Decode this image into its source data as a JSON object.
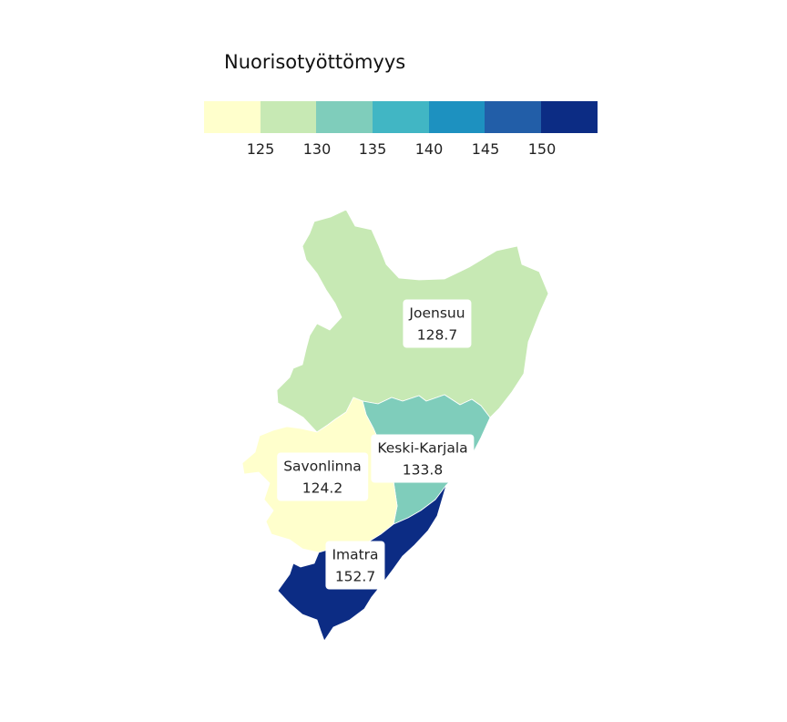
{
  "legend": {
    "title": "Nuorisotyöttömyys",
    "colors": [
      "#ffffcc",
      "#c7e9b4",
      "#7fcdbb",
      "#41b6c4",
      "#1d91c0",
      "#225ea8",
      "#0c2c84"
    ],
    "ticks": [
      "125",
      "130",
      "135",
      "140",
      "145",
      "150"
    ]
  },
  "regions": [
    {
      "name": "Joensuu",
      "value": "128.7",
      "color": "#c7e9b4"
    },
    {
      "name": "Keski-Karjala",
      "value": "133.8",
      "color": "#7fcdbb"
    },
    {
      "name": "Savonlinna",
      "value": "124.2",
      "color": "#ffffcc"
    },
    {
      "name": "Imatra",
      "value": "152.7",
      "color": "#0c2c84"
    }
  ]
}
